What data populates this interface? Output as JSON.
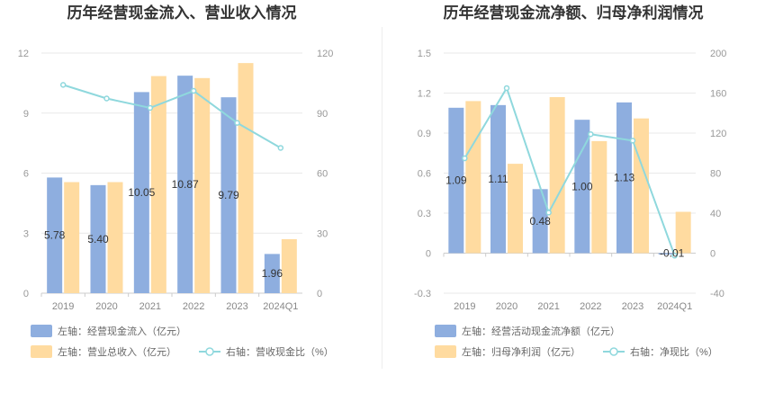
{
  "colors": {
    "bar1": "#8eaedf",
    "bar2": "#ffdba0",
    "line": "#8fd8dd",
    "grid": "#e9e9e9"
  },
  "chart_data": [
    {
      "type": "bar",
      "title": "历年经营现金流入、营业收入情况",
      "categories": [
        "2019",
        "2020",
        "2021",
        "2022",
        "2023",
        "2024Q1"
      ],
      "left_axis": {
        "ylim": [
          0,
          12
        ],
        "ticks": [
          "0",
          "3",
          "6",
          "9",
          "12"
        ]
      },
      "right_axis": {
        "ylim": [
          0,
          120
        ],
        "ticks": [
          "0",
          "30",
          "60",
          "90",
          "120"
        ]
      },
      "series": [
        {
          "name": "左轴：经营现金流入（亿元）",
          "kind": "bar",
          "axis": "left",
          "color": "#8eaedf",
          "values": [
            5.78,
            5.4,
            10.05,
            10.87,
            9.79,
            1.96
          ],
          "labels": [
            "5.78",
            "5.40",
            "10.05",
            "10.87",
            "9.79",
            "1.96"
          ]
        },
        {
          "name": "左轴：营业总收入（亿元）",
          "kind": "bar",
          "axis": "left",
          "color": "#ffdba0",
          "values": [
            5.55,
            5.55,
            10.85,
            10.75,
            11.5,
            2.7
          ]
        },
        {
          "name": "右轴：营收现金比（%）",
          "kind": "line",
          "axis": "right",
          "color": "#8fd8dd",
          "values": [
            104.1,
            97.3,
            92.6,
            101.1,
            85.1,
            72.6
          ]
        }
      ]
    },
    {
      "type": "bar",
      "title": "历年经营现金流净额、归母净利润情况",
      "categories": [
        "2019",
        "2020",
        "2021",
        "2022",
        "2023",
        "2024Q1"
      ],
      "left_axis": {
        "ylim": [
          -0.3,
          1.5
        ],
        "ticks": [
          "-0.3",
          "0",
          "0.3",
          "0.6",
          "0.9",
          "1.2",
          "1.5"
        ]
      },
      "right_axis": {
        "ylim": [
          -40,
          200
        ],
        "ticks": [
          "-40",
          "0",
          "40",
          "80",
          "120",
          "160",
          "200"
        ]
      },
      "series": [
        {
          "name": "左轴：经营活动现金流净额（亿元）",
          "kind": "bar",
          "axis": "left",
          "color": "#8eaedf",
          "values": [
            1.09,
            1.11,
            0.48,
            1.0,
            1.13,
            -0.01
          ],
          "labels": [
            "1.09",
            "1.11",
            "0.48",
            "1.00",
            "1.13",
            "-0.01"
          ]
        },
        {
          "name": "左轴：归母净利润（亿元）",
          "kind": "bar",
          "axis": "left",
          "color": "#ffdba0",
          "values": [
            1.14,
            0.67,
            1.17,
            0.84,
            1.01,
            0.31
          ]
        },
        {
          "name": "右轴：净现比（%）",
          "kind": "line",
          "axis": "right",
          "color": "#8fd8dd",
          "values": [
            94.8,
            165.0,
            40.6,
            118.9,
            112.5,
            -2.5
          ]
        }
      ]
    }
  ]
}
